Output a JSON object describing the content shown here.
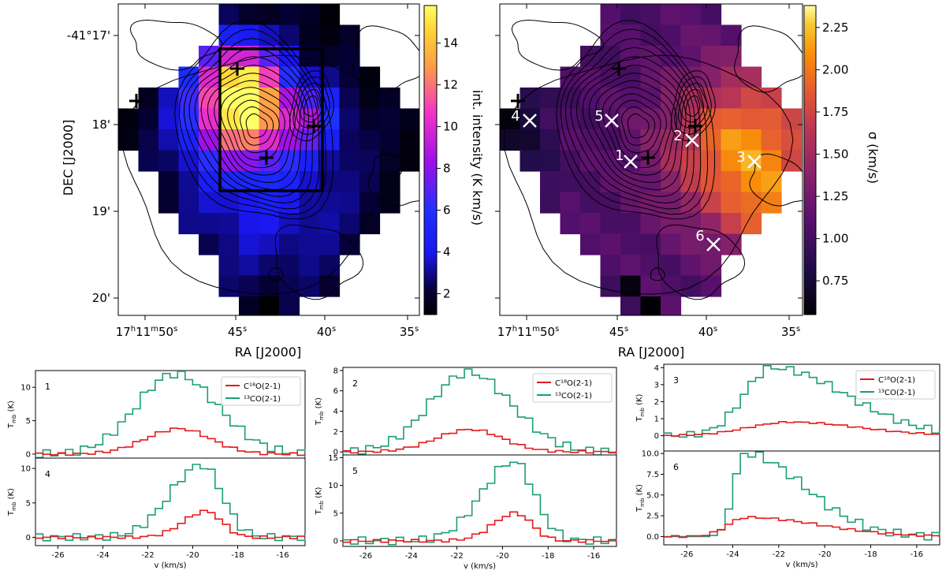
{
  "colors": {
    "c18o": "#e41a1c",
    "co13": "#1b9e77",
    "frame": "#000000",
    "marker_light": "#ffffff",
    "marker_dark": "#000000"
  },
  "chart_data": [
    {
      "id": "map-intensity",
      "type": "heatmap",
      "colormap": "plasma-like (black-blue-magenta-orange-yellow)",
      "xlabel": "RA [J2000]",
      "ylabel": "DEC [J2000]",
      "x_ticks": [
        {
          "label_parts": [
            "17",
            "h",
            "11",
            "m",
            "50",
            "s"
          ]
        },
        {
          "label_parts": [
            "45",
            "s"
          ]
        },
        {
          "label_parts": [
            "40",
            "s"
          ]
        },
        {
          "label_parts": [
            "35",
            "s"
          ]
        }
      ],
      "y_ticks": [
        "-41°17'",
        "18'",
        "19'",
        "20'"
      ],
      "colorbar": {
        "label": "int. intensity (K km/s)",
        "range": [
          1,
          15.8
        ],
        "ticks": [
          "2",
          "4",
          "6",
          "8",
          "10",
          "12",
          "14"
        ]
      },
      "box": "rectangle around central clump",
      "crosses": [
        "+",
        "+",
        "+",
        "+"
      ]
    },
    {
      "id": "map-dispersion",
      "type": "heatmap",
      "colormap": "inferno-like",
      "xlabel": "RA [J2000]",
      "x_ticks": [
        {
          "label_parts": [
            "17",
            "h",
            "11",
            "m",
            "50",
            "s"
          ]
        },
        {
          "label_parts": [
            "45",
            "s"
          ]
        },
        {
          "label_parts": [
            "40",
            "s"
          ]
        },
        {
          "label_parts": [
            "35",
            "s"
          ]
        }
      ],
      "colorbar": {
        "label": "σ (km/s)",
        "range": [
          0.55,
          2.38
        ],
        "ticks": [
          "0.75",
          "1.00",
          "1.25",
          "1.50",
          "1.75",
          "2.00",
          "2.25"
        ]
      },
      "positions": [
        {
          "label": "1"
        },
        {
          "label": "2"
        },
        {
          "label": "3"
        },
        {
          "label": "4"
        },
        {
          "label": "5"
        },
        {
          "label": "6"
        }
      ]
    },
    {
      "id": "spectra",
      "type": "line",
      "style": "step",
      "xlabel": "v (km/s)",
      "ylabel": "T_mb (K)",
      "xlim": [
        -27,
        -15
      ],
      "x_ticks": [
        "-26",
        "-24",
        "-22",
        "-20",
        "-18",
        "-16"
      ],
      "legend": {
        "c18o": "C¹⁸O(2-1)",
        "co13": "¹³CO(2-1)",
        "placement": "top-right"
      },
      "panels": [
        {
          "label": "1",
          "ylim": [
            -0.6,
            12.5
          ],
          "y_ticks": [
            "0",
            "5",
            "10"
          ],
          "co13_peak": 12.0,
          "co13_center": -20.8,
          "c18o_peak": 3.8,
          "c18o_center": -20.6
        },
        {
          "label": "2",
          "ylim": [
            -0.3,
            8.3
          ],
          "y_ticks": [
            "0",
            "2",
            "4",
            "6",
            "8"
          ],
          "co13_peak": 7.8,
          "co13_center": -21.5,
          "c18o_peak": 2.2,
          "c18o_center": -21.4
        },
        {
          "label": "3",
          "ylim": [
            -0.9,
            4.2
          ],
          "y_ticks": [
            "0",
            "1",
            "2",
            "3",
            "4"
          ],
          "co13_peak": 4.0,
          "co13_center": -22.3,
          "c18o_peak": 0.8,
          "c18o_center": -21.5
        },
        {
          "label": "4",
          "ylim": [
            -1.2,
            11.5
          ],
          "y_ticks": [
            "0",
            "5",
            "10"
          ],
          "co13_peak": 10.5,
          "co13_center": -19.6,
          "c18o_peak": 3.8,
          "c18o_center": -19.4
        },
        {
          "label": "5",
          "ylim": [
            -1.0,
            15.5
          ],
          "y_ticks": [
            "0",
            "5",
            "10",
            "15"
          ],
          "co13_peak": 14.3,
          "co13_center": -19.5,
          "c18o_peak": 5.0,
          "c18o_center": -19.4
        },
        {
          "label": "6",
          "ylim": [
            -1.0,
            10.3
          ],
          "y_ticks": [
            "0.0",
            "2.5",
            "5.0",
            "7.5",
            "10.0"
          ],
          "co13_peak": 10.0,
          "co13_center": -23.5,
          "c18o_peak": 2.3,
          "c18o_center": -23.4
        }
      ]
    }
  ]
}
